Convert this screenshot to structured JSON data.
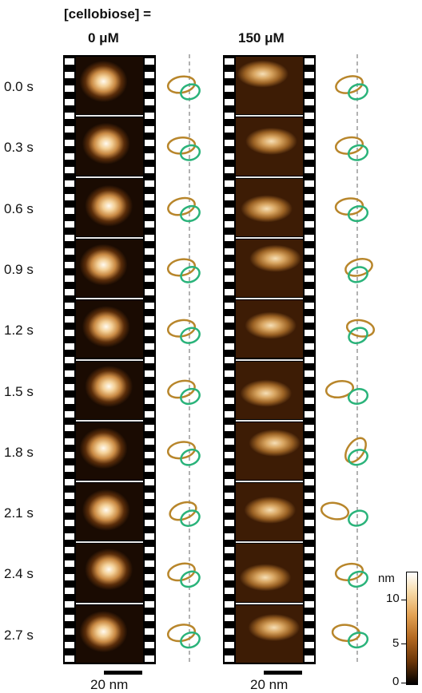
{
  "header": {
    "line1": "[cellobiose] =",
    "col1": "0 μM",
    "col2": "150 μM"
  },
  "time_labels": [
    "0.0 s",
    "0.3 s",
    "0.6 s",
    "0.9 s",
    "1.2 s",
    "1.5 s",
    "1.8 s",
    "2.1 s",
    "2.4 s",
    "2.7 s"
  ],
  "scale_bar": {
    "label_left": "20 nm",
    "label_right": "20 nm"
  },
  "colorbar": {
    "unit": "nm",
    "ticks": [
      "10",
      "5",
      "0"
    ],
    "range_nm": [
      0,
      13
    ]
  },
  "colors": {
    "torso_ellipse": "#b8862b",
    "head_ellipse": "#2ab37a",
    "dashed_line": "#888888"
  },
  "orientation_0uM": [
    {
      "torso_angle": -10,
      "head_angle": -20
    },
    {
      "torso_angle": -5,
      "head_angle": -15
    },
    {
      "torso_angle": -15,
      "head_angle": -20
    },
    {
      "torso_angle": -10,
      "head_angle": -25
    },
    {
      "torso_angle": -10,
      "head_angle": -20
    },
    {
      "torso_angle": -15,
      "head_angle": -20
    },
    {
      "torso_angle": -10,
      "head_angle": -25
    },
    {
      "torso_angle": -20,
      "head_angle": -25
    },
    {
      "torso_angle": -15,
      "head_angle": -25
    },
    {
      "torso_angle": -10,
      "head_angle": -20
    }
  ],
  "orientation_150uM": [
    {
      "torso_angle": -15,
      "head_angle": -20
    },
    {
      "torso_angle": -10,
      "head_angle": -15
    },
    {
      "torso_angle": -5,
      "head_angle": -15
    },
    {
      "torso_angle": -15,
      "head_angle": -20
    },
    {
      "torso_angle": 10,
      "head_angle": -25
    },
    {
      "torso_angle": -10,
      "head_angle": -15
    },
    {
      "torso_angle": -55,
      "head_angle": -20
    },
    {
      "torso_angle": 10,
      "head_angle": -20
    },
    {
      "torso_angle": -10,
      "head_angle": -20
    },
    {
      "torso_angle": 5,
      "head_angle": -15
    }
  ]
}
